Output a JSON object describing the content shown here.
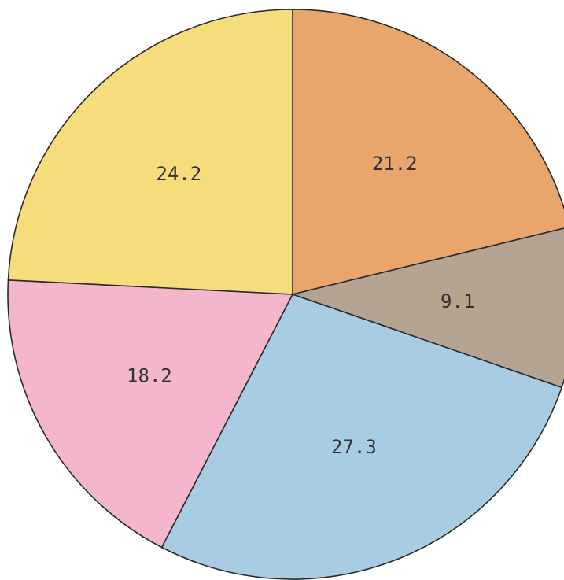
{
  "chart_data": {
    "type": "pie",
    "values": [
      21.2,
      9.1,
      27.3,
      18.2,
      24.2
    ],
    "colors": [
      "#e9a66c",
      "#b4a491",
      "#a8cde2",
      "#f4b6cd",
      "#f7dc7c"
    ]
  }
}
